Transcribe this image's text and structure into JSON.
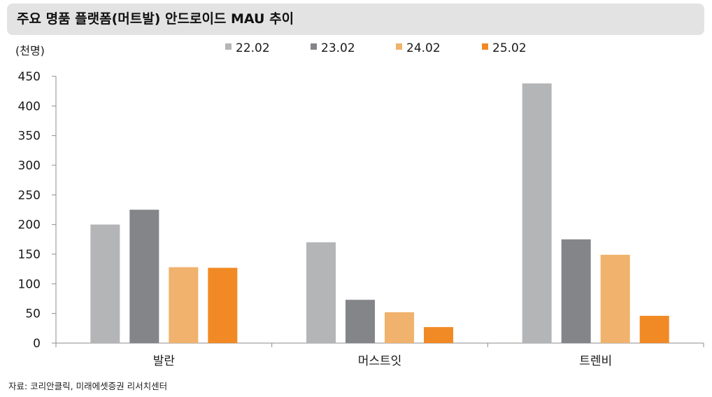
{
  "title": "주요 명품 플랫폼(머트발) 안드로이드 MAU 추이",
  "source": "자료: 코리안클릭, 미래에셋증권 리서치센터",
  "colors": {
    "title_bg": "#e3e3e3",
    "axis": "#8c8c8c"
  },
  "chart_data": {
    "type": "bar",
    "unit_label": "(천명)",
    "categories": [
      "발란",
      "머스트잇",
      "트렌비"
    ],
    "series": [
      {
        "name": "22.02",
        "color": "#b4b5b7",
        "values": [
          200,
          170,
          438
        ]
      },
      {
        "name": "23.02",
        "color": "#838588",
        "values": [
          225,
          73,
          175
        ]
      },
      {
        "name": "24.02",
        "color": "#f0b26c",
        "values": [
          128,
          52,
          149
        ]
      },
      {
        "name": "25.02",
        "color": "#f18a24",
        "values": [
          127,
          27,
          46
        ]
      }
    ],
    "yticks": [
      0,
      50,
      100,
      150,
      200,
      250,
      300,
      350,
      400,
      450
    ],
    "ylim": [
      0,
      450
    ],
    "grid": false,
    "legend_position": "top-center"
  }
}
